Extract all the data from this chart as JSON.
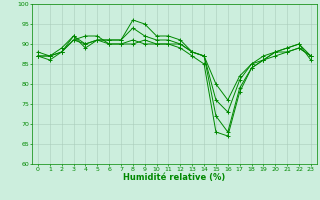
{
  "xlabel": "Humidité relative (%)",
  "bg_color": "#cceedd",
  "grid_color": "#aaccbb",
  "line_color": "#008800",
  "marker": "+",
  "xlim": [
    -0.5,
    23.5
  ],
  "ylim": [
    60,
    100
  ],
  "yticks": [
    60,
    65,
    70,
    75,
    80,
    85,
    90,
    95,
    100
  ],
  "xticks": [
    0,
    1,
    2,
    3,
    4,
    5,
    6,
    7,
    8,
    9,
    10,
    11,
    12,
    13,
    14,
    15,
    16,
    17,
    18,
    19,
    20,
    21,
    22,
    23
  ],
  "curves": [
    [
      87,
      86,
      88,
      91,
      92,
      92,
      90,
      90,
      90,
      91,
      90,
      90,
      89,
      87,
      85,
      68,
      67,
      78,
      84,
      86,
      88,
      88,
      89,
      87
    ],
    [
      87,
      87,
      88,
      92,
      89,
      91,
      91,
      91,
      96,
      95,
      92,
      92,
      91,
      88,
      87,
      72,
      68,
      79,
      84,
      86,
      88,
      89,
      90,
      86
    ],
    [
      88,
      87,
      89,
      92,
      90,
      91,
      91,
      91,
      94,
      92,
      91,
      91,
      90,
      88,
      87,
      76,
      73,
      81,
      85,
      87,
      88,
      89,
      90,
      87
    ],
    [
      87,
      87,
      88,
      91,
      90,
      91,
      90,
      90,
      91,
      90,
      90,
      90,
      90,
      88,
      87,
      80,
      76,
      82,
      85,
      86,
      87,
      88,
      89,
      87
    ]
  ],
  "xlabel_fontsize": 6,
  "tick_fontsize": 4.5,
  "linewidth": 0.7,
  "markersize": 2.5,
  "markeredgewidth": 0.7
}
